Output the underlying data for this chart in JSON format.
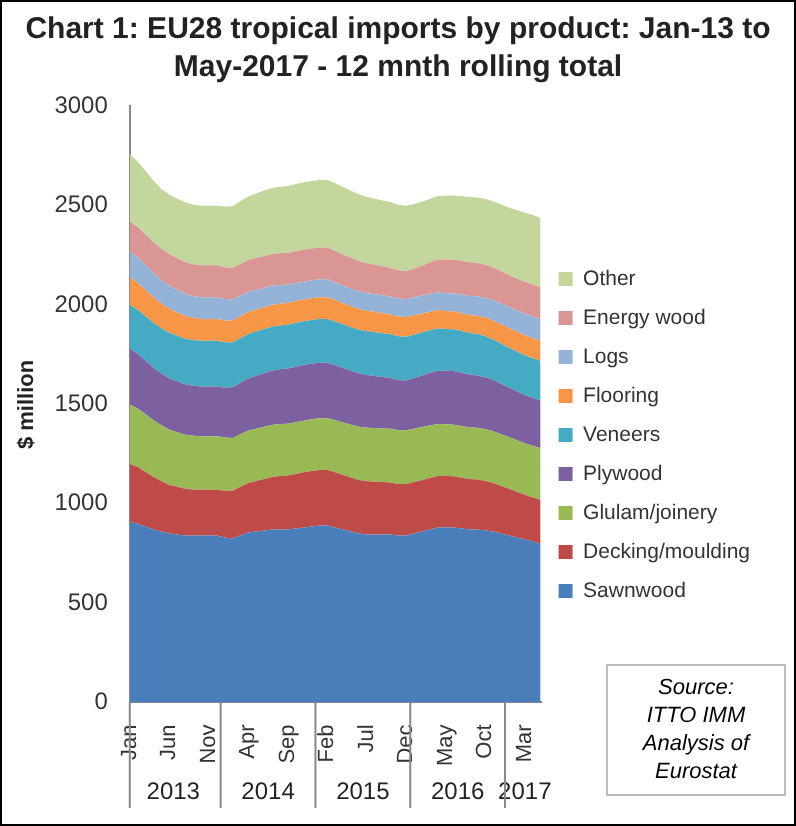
{
  "chart_data": {
    "type": "area",
    "stacked": true,
    "title": "Chart 1: EU28 tropical imports by product: Jan-13 to May-2017 - 12 mnth rolling total",
    "ylabel": "$ million",
    "categories": [
      "Jan",
      null,
      null,
      null,
      null,
      "Jun",
      null,
      null,
      null,
      null,
      "Nov",
      null,
      null,
      null,
      null,
      "Apr",
      null,
      null,
      null,
      null,
      "Sep",
      null,
      null,
      null,
      null,
      "Feb",
      null,
      null,
      null,
      null,
      "Jul",
      null,
      null,
      null,
      null,
      "Dec",
      null,
      null,
      null,
      null,
      "May",
      null,
      null,
      null,
      null,
      "Oct",
      null,
      null,
      null,
      null,
      "Mar",
      null,
      null
    ],
    "ylim": [
      0,
      3000
    ],
    "yticks": [
      0,
      500,
      1000,
      1500,
      2000,
      2500,
      3000
    ],
    "grid": false,
    "legend": "right",
    "series": [
      {
        "name": "Sawnwood",
        "color": "#4a7ebb",
        "values": [
          910,
          900,
          885,
          870,
          860,
          850,
          845,
          840,
          840,
          840,
          840,
          840,
          830,
          825,
          840,
          855,
          860,
          865,
          870,
          870,
          870,
          875,
          880,
          885,
          890,
          890,
          880,
          870,
          860,
          850,
          845,
          845,
          845,
          845,
          840,
          840,
          850,
          860,
          870,
          880,
          880,
          880,
          875,
          870,
          870,
          865,
          860,
          850,
          840,
          830,
          820,
          810,
          800
        ]
      },
      {
        "name": "Decking/moulding",
        "color": "#be4b48",
        "values": [
          290,
          285,
          275,
          265,
          255,
          245,
          240,
          235,
          232,
          230,
          230,
          230,
          235,
          240,
          245,
          250,
          255,
          260,
          265,
          270,
          272,
          275,
          278,
          280,
          280,
          280,
          278,
          275,
          272,
          270,
          268,
          266,
          264,
          262,
          260,
          260,
          260,
          260,
          260,
          260,
          260,
          258,
          256,
          254,
          252,
          250,
          245,
          240,
          235,
          230,
          225,
          222,
          220
        ]
      },
      {
        "name": "Glulam/joinery",
        "color": "#98b954",
        "values": [
          300,
          295,
          290,
          285,
          280,
          278,
          275,
          272,
          270,
          270,
          270,
          270,
          268,
          266,
          265,
          264,
          263,
          262,
          262,
          261,
          261,
          260,
          260,
          260,
          260,
          260,
          262,
          264,
          266,
          268,
          270,
          270,
          270,
          270,
          270,
          270,
          268,
          266,
          264,
          262,
          260,
          260,
          260,
          260,
          260,
          260,
          260,
          260,
          260,
          260,
          260,
          260,
          260
        ]
      },
      {
        "name": "Plywood",
        "color": "#7d60a0",
        "values": [
          280,
          275,
          270,
          265,
          260,
          258,
          256,
          254,
          252,
          250,
          250,
          250,
          252,
          255,
          258,
          262,
          266,
          270,
          273,
          276,
          278,
          280,
          280,
          280,
          280,
          280,
          277,
          274,
          271,
          268,
          265,
          262,
          259,
          256,
          253,
          250,
          255,
          260,
          265,
          268,
          270,
          270,
          268,
          266,
          264,
          262,
          258,
          254,
          250,
          246,
          243,
          241,
          240
        ]
      },
      {
        "name": "Veneers",
        "color": "#46aac5",
        "values": [
          220,
          222,
          224,
          226,
          228,
          230,
          230,
          230,
          230,
          230,
          230,
          230,
          228,
          226,
          225,
          224,
          223,
          222,
          221,
          220,
          220,
          220,
          220,
          220,
          220,
          220,
          220,
          220,
          220,
          220,
          220,
          220,
          220,
          220,
          220,
          220,
          218,
          216,
          214,
          212,
          210,
          210,
          210,
          210,
          208,
          206,
          204,
          202,
          200,
          200,
          200,
          200,
          200
        ]
      },
      {
        "name": "Flooring",
        "color": "#f79646",
        "values": [
          140,
          136,
          132,
          128,
          124,
          120,
          117,
          114,
          112,
          110,
          110,
          110,
          110,
          110,
          110,
          110,
          110,
          110,
          110,
          110,
          110,
          110,
          110,
          110,
          110,
          110,
          108,
          106,
          105,
          104,
          103,
          102,
          101,
          100,
          100,
          100,
          98,
          96,
          94,
          92,
          90,
          90,
          90,
          90,
          92,
          94,
          96,
          98,
          100,
          100,
          100,
          100,
          100
        ]
      },
      {
        "name": "Logs",
        "color": "#95b3d7",
        "values": [
          130,
          128,
          125,
          122,
          119,
          116,
          114,
          112,
          110,
          110,
          110,
          110,
          108,
          106,
          104,
          102,
          100,
          98,
          96,
          94,
          92,
          91,
          90,
          90,
          90,
          90,
          90,
          90,
          90,
          90,
          90,
          90,
          90,
          90,
          90,
          90,
          90,
          90,
          90,
          90,
          90,
          92,
          94,
          96,
          98,
          100,
          102,
          104,
          106,
          108,
          110,
          110,
          110
        ]
      },
      {
        "name": "Energy wood",
        "color": "#d99694",
        "values": [
          150,
          152,
          154,
          156,
          158,
          160,
          160,
          160,
          160,
          160,
          160,
          160,
          160,
          160,
          160,
          160,
          160,
          160,
          160,
          160,
          160,
          160,
          160,
          160,
          160,
          160,
          158,
          156,
          154,
          152,
          150,
          148,
          146,
          144,
          142,
          140,
          145,
          150,
          158,
          165,
          170,
          170,
          170,
          170,
          168,
          166,
          164,
          162,
          160,
          160,
          160,
          160,
          160
        ]
      },
      {
        "name": "Other",
        "color": "#c3d69b",
        "values": [
          340,
          330,
          320,
          310,
          300,
          300,
          300,
          300,
          300,
          300,
          300,
          300,
          305,
          310,
          315,
          320,
          325,
          330,
          332,
          334,
          336,
          338,
          340,
          340,
          340,
          340,
          340,
          340,
          338,
          336,
          334,
          332,
          332,
          332,
          330,
          330,
          325,
          322,
          320,
          320,
          320,
          322,
          325,
          328,
          330,
          332,
          334,
          336,
          340,
          345,
          348,
          350,
          350
        ]
      }
    ],
    "annotations": [
      "2013",
      "2014",
      "2015",
      "2016",
      "2017",
      "Source:\nITTO IMM\nAnalysis of\nEurostat"
    ]
  }
}
